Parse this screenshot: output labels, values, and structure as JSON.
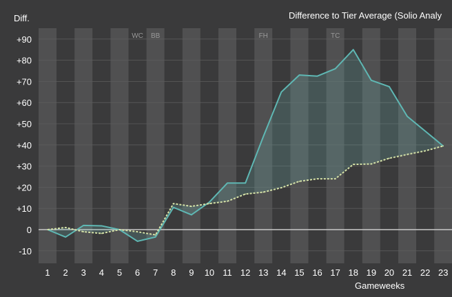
{
  "chart_data": {
    "type": "line",
    "title": "Difference to Tier Average (Solio Analy",
    "ylabel": "Diff.",
    "xlabel": "Gameweeks",
    "x": [
      1,
      2,
      3,
      4,
      5,
      6,
      7,
      8,
      9,
      10,
      11,
      12,
      13,
      14,
      15,
      16,
      17,
      18,
      19,
      20,
      21,
      22,
      23
    ],
    "ylim": [
      -16,
      95
    ],
    "yticks": [
      "+90",
      "+80",
      "+70",
      "+60",
      "+50",
      "+40",
      "+30",
      "+20",
      "+10",
      "0",
      "-10"
    ],
    "ytick_values": [
      90,
      80,
      70,
      60,
      50,
      40,
      30,
      20,
      10,
      0,
      -10
    ],
    "chip_labels": [
      {
        "x": 6,
        "label": "WC"
      },
      {
        "x": 7,
        "label": "BB"
      },
      {
        "x": 13,
        "label": "FH"
      },
      {
        "x": 17,
        "label": "TC"
      }
    ],
    "series": [
      {
        "style": "solid",
        "color": "#5fb8b4",
        "x": [
          0.5,
          1.5,
          2.5,
          3.5,
          4.5,
          5.5,
          6.5,
          7.5,
          8.5,
          9.5,
          10.5,
          11.5,
          12.5,
          13.5,
          14.5,
          15.5,
          16.5,
          17.5,
          18.5,
          19.5,
          20.5,
          21.5,
          22.5
        ],
        "values": [
          0,
          -3.5,
          2,
          1.8,
          0,
          -5.5,
          -3.5,
          10.5,
          7,
          13,
          22,
          22,
          44,
          65,
          73,
          72.5,
          76,
          85,
          70.5,
          67.5,
          53.5,
          46.5,
          39.5
        ]
      },
      {
        "style": "dashed",
        "color": "#d6e3a8",
        "x": [
          0.5,
          1.5,
          2.5,
          3.5,
          4.5,
          5.5,
          6.5,
          7.5,
          8.5,
          9.5,
          10.5,
          11.5,
          12.5,
          13.5,
          14.5,
          15.5,
          16.5,
          17.5,
          18.5,
          19.5,
          20.5,
          21.5,
          22.5
        ],
        "values": [
          0,
          1,
          -1,
          -1.8,
          0,
          -1,
          -2.5,
          12.3,
          11,
          12.3,
          13.4,
          16.8,
          17.7,
          19.8,
          22.8,
          24,
          24,
          30.8,
          31,
          33.7,
          35.5,
          37.2,
          39.5
        ]
      }
    ],
    "grid": true,
    "legend": "none"
  }
}
